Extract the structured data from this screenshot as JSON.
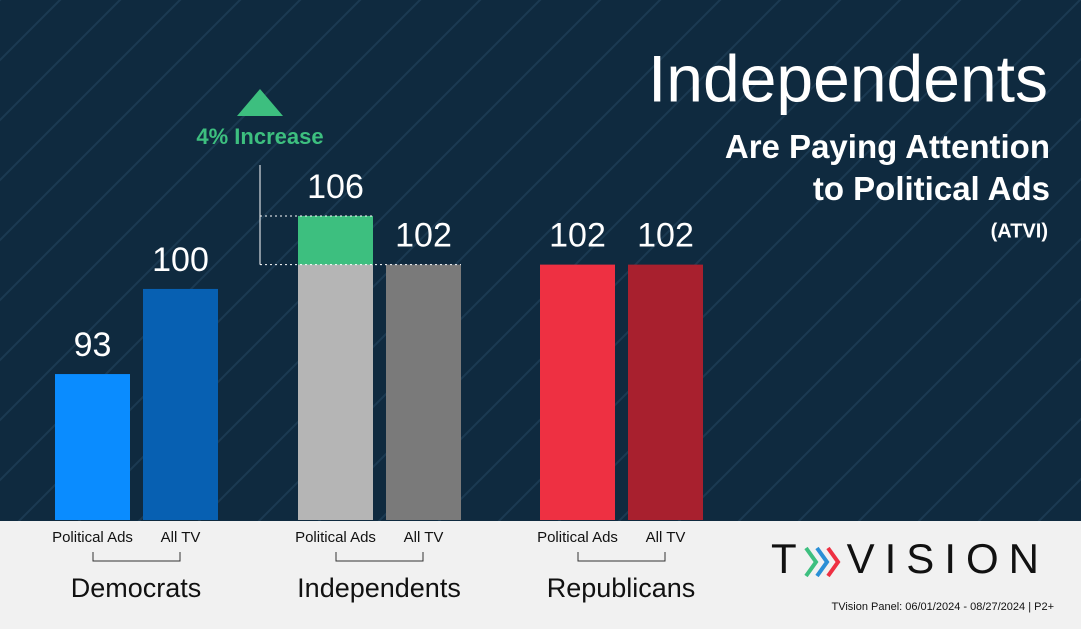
{
  "chart_data": {
    "type": "bar",
    "title": "Independents",
    "subtitle": "Are Paying Attention to Political Ads",
    "note": "(ATVI)",
    "categories": [
      "Democrats",
      "Independents",
      "Republicans"
    ],
    "series": [
      {
        "name": "Political Ads",
        "values": [
          93,
          106,
          102
        ],
        "colors": [
          "#0a8cff",
          "#b5b5b5",
          "#ee3042"
        ]
      },
      {
        "name": "All TV",
        "values": [
          100,
          102,
          102
        ],
        "colors": [
          "#0760b2",
          "#7a7a7a",
          "#a8202e"
        ]
      }
    ],
    "ylim": [
      81,
      112
    ],
    "annotation": {
      "text": "4% Increase",
      "color": "#3dbf7f"
    },
    "logo": [
      "T",
      "VISION"
    ],
    "footnote": "TVision Panel:  06/01/2024 - 08/27/2024 |  P2+"
  }
}
